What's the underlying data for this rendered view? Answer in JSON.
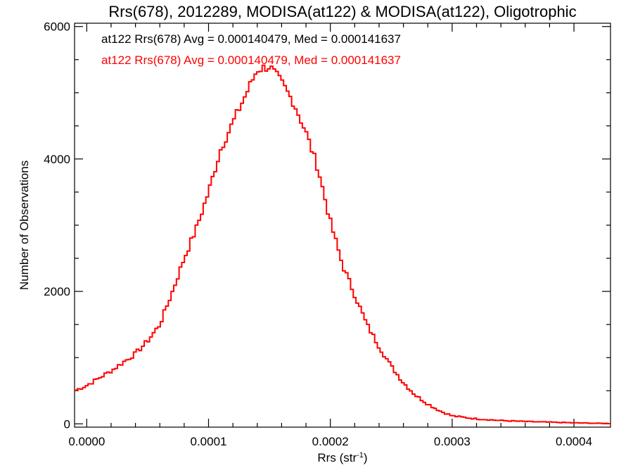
{
  "chart_data": {
    "type": "histogram",
    "title": "Rrs(678), 2012289, MODISA(at122) & MODISA(at122), Oligotrophic",
    "xlabel": "Rrs (str",
    "xlabel_sup": "-1",
    "xlabel_close": ")",
    "ylabel": "Number of Observations",
    "xlim": [
      -1e-05,
      0.00043
    ],
    "ylim": [
      -50,
      6050
    ],
    "x_ticks": [
      0.0,
      0.0001,
      0.0002,
      0.0003,
      0.0004
    ],
    "x_tick_labels": [
      "0.0000",
      "0.0001",
      "0.0002",
      "0.0003",
      "0.0004"
    ],
    "y_ticks": [
      0,
      2000,
      4000,
      6000
    ],
    "y_tick_labels": [
      "0",
      "2000",
      "4000",
      "6000"
    ],
    "annotations": [
      {
        "text": "at122 Rrs(678) Avg = 0.000140479, Med = 0.000141637",
        "color": "#000000"
      },
      {
        "text": "at122 Rrs(678) Avg = 0.000140479, Med = 0.000141637",
        "color": "#ff0000"
      }
    ],
    "series": [
      {
        "color": "#ff0000",
        "x": [
          -1e-05,
          0.0,
          2e-05,
          4e-05,
          5e-05,
          6e-05,
          7e-05,
          8e-05,
          9e-05,
          0.0001,
          0.00011,
          0.00012,
          0.00013,
          0.00014,
          0.00015,
          0.00016,
          0.00017,
          0.00018,
          0.00019,
          0.0002,
          0.00021,
          0.00022,
          0.00023,
          0.00024,
          0.00025,
          0.00026,
          0.00027,
          0.00028,
          0.00029,
          0.0003,
          0.00032,
          0.00034,
          0.00036,
          0.00038,
          0.0004,
          0.00042,
          0.00043
        ],
        "y": [
          500,
          580,
          800,
          1060,
          1250,
          1500,
          1980,
          2500,
          2950,
          3500,
          4150,
          4550,
          4950,
          5350,
          5400,
          5150,
          4850,
          4400,
          3850,
          3050,
          2400,
          1950,
          1500,
          1170,
          870,
          620,
          430,
          300,
          195,
          120,
          75,
          50,
          35,
          25,
          15,
          8,
          5
        ]
      }
    ]
  }
}
